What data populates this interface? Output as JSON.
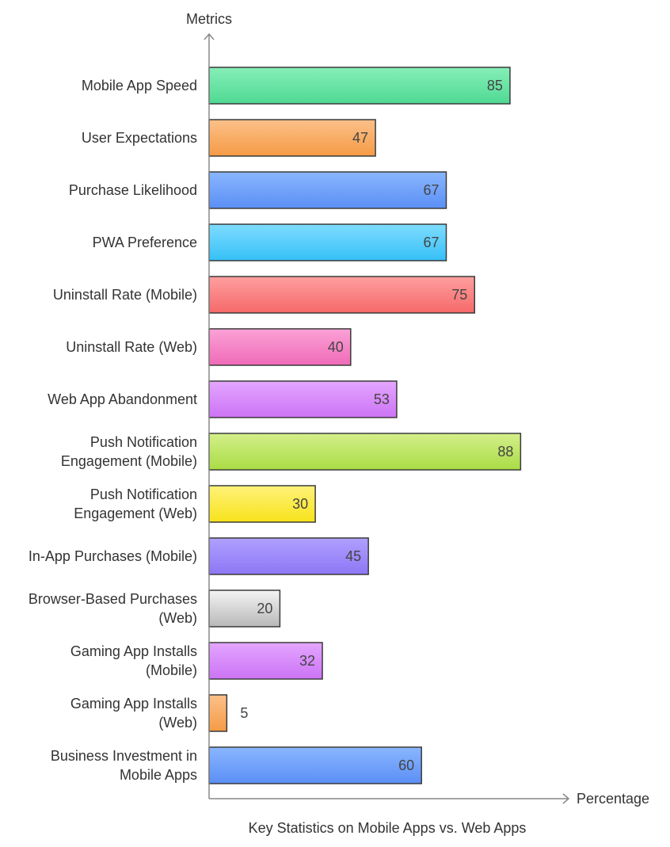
{
  "chart_data": {
    "type": "bar",
    "orientation": "horizontal",
    "title": "Key Statistics on Mobile Apps vs. Web Apps",
    "xlabel": "Percentage",
    "ylabel": "Metrics",
    "xlim": [
      0,
      100
    ],
    "grid": false,
    "categories": [
      [
        "Mobile App Speed"
      ],
      [
        "User Expectations"
      ],
      [
        "Purchase Likelihood"
      ],
      [
        "PWA Preference"
      ],
      [
        "Uninstall Rate (Mobile)"
      ],
      [
        "Uninstall Rate (Web)"
      ],
      [
        "Web App Abandonment"
      ],
      [
        "Push Notification",
        "Engagement (Mobile)"
      ],
      [
        "Push Notification",
        "Engagement (Web)"
      ],
      [
        "In-App Purchases (Mobile)"
      ],
      [
        "Browser-Based Purchases",
        "(Web)"
      ],
      [
        "Gaming App Installs",
        "(Mobile)"
      ],
      [
        "Gaming App Installs",
        "(Web)"
      ],
      [
        "Business Investment in",
        "Mobile Apps"
      ]
    ],
    "values": [
      85,
      47,
      67,
      67,
      75,
      40,
      53,
      88,
      30,
      45,
      20,
      32,
      5,
      60
    ],
    "colors": [
      [
        "#86efb8",
        "#4fd992"
      ],
      [
        "#fcc08a",
        "#f59b45"
      ],
      [
        "#8ab6ff",
        "#5a8ff5"
      ],
      [
        "#7fdcff",
        "#35c0f7"
      ],
      [
        "#ff9f9f",
        "#f56969"
      ],
      [
        "#fba2d6",
        "#ef6ab8"
      ],
      [
        "#e4a6ff",
        "#cc73f5"
      ],
      [
        "#d4ef8a",
        "#a9dc45"
      ],
      [
        "#fff27a",
        "#f7e21a"
      ],
      [
        "#b0a0ff",
        "#8d77f5"
      ],
      [
        "#f4f4f4",
        "#b8b8b8"
      ],
      [
        "#e4a6ff",
        "#cc73f5"
      ],
      [
        "#fcc08a",
        "#f59b45"
      ],
      [
        "#8ab6ff",
        "#5a8ff5"
      ]
    ]
  }
}
